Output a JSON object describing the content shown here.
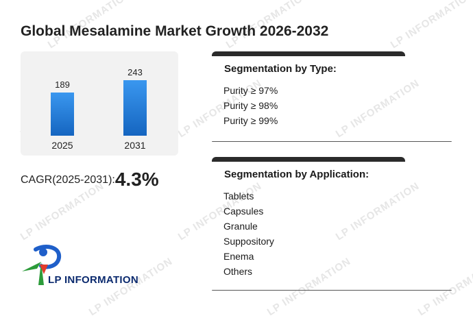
{
  "title": "Global Mesalamine Market Growth 2026-2032",
  "chart_data": {
    "type": "bar",
    "categories": [
      "2025",
      "2031"
    ],
    "values": [
      189,
      243
    ],
    "ylim": [
      0,
      300
    ],
    "color": "#1e7ad6"
  },
  "cagr": {
    "label": "CAGR(2025-2031):",
    "value": "4.3%"
  },
  "segment_type": {
    "title": "Segmentation by Type:",
    "items": [
      "Purity ≥ 97%",
      "Purity ≥ 98%",
      "Purity ≥ 99%"
    ]
  },
  "segment_application": {
    "title": "Segmentation by Application:",
    "items": [
      "Tablets",
      "Capsules",
      "Granule",
      "Suppository",
      "Enema",
      "Others"
    ]
  },
  "logo": {
    "text": "LP INFORMATION",
    "watermark": "LP INFORMATION"
  }
}
